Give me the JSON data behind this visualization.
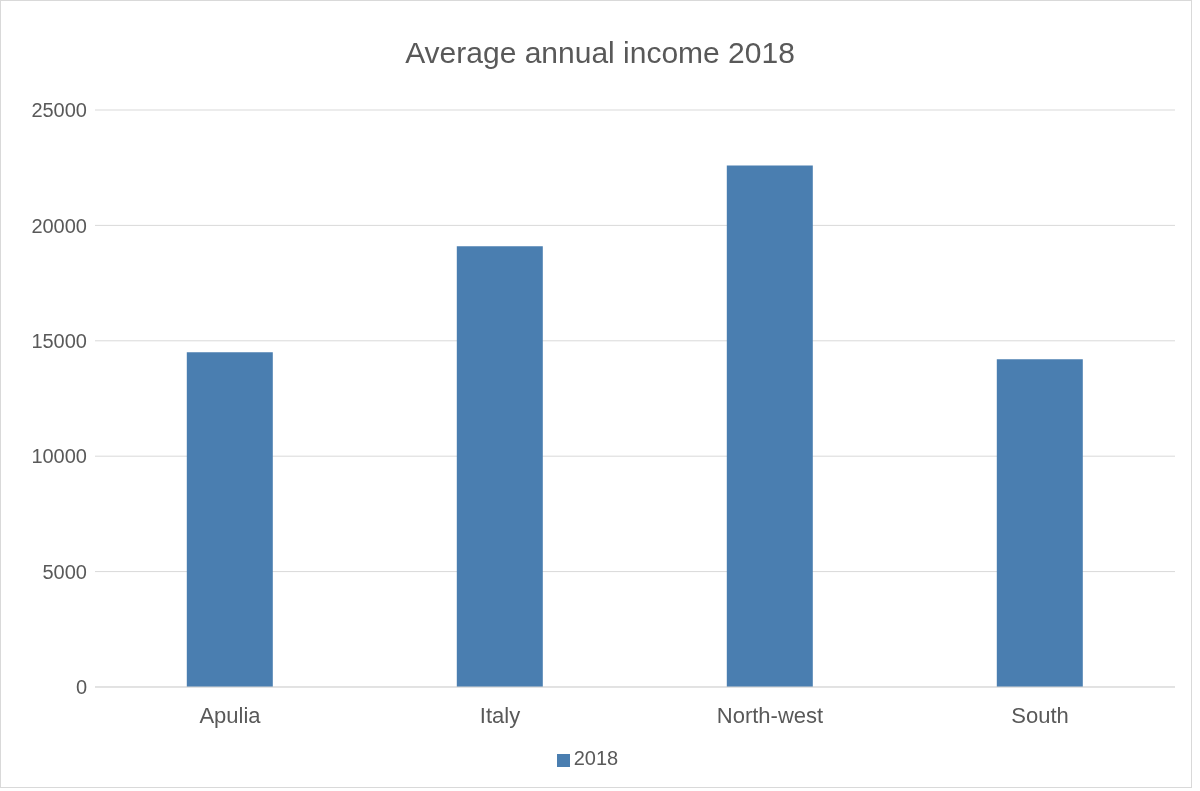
{
  "chart_data": {
    "type": "bar",
    "title": "Average annual income 2018",
    "categories": [
      "Apulia",
      "Italy",
      "North-west",
      "South"
    ],
    "series": [
      {
        "name": "2018",
        "color": "#4a7eb0",
        "values": [
          14500,
          19100,
          22600,
          14200
        ]
      }
    ],
    "ylim": [
      0,
      25000
    ],
    "yticks": [
      0,
      5000,
      10000,
      15000,
      20000,
      25000
    ],
    "grid": "y",
    "legend": "bottom"
  }
}
